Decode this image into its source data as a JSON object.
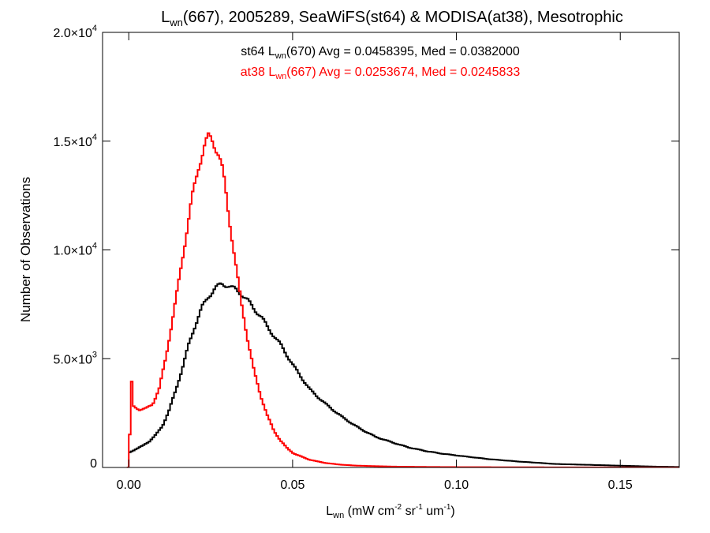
{
  "chart_data": {
    "type": "line",
    "style": "histogram-step",
    "title": {
      "main": "L",
      "sub": "wn",
      "rest": "(667), 2005289, SeaWiFS(st64) & MODISA(at38), Mesotrophic"
    },
    "xlabel": {
      "main": "L",
      "sub": "wn",
      "rest": " (mW cm",
      "sup1": "-2",
      "mid": " sr",
      "sup2": "-1",
      "end": " um",
      "sup3": "-1",
      "close": ")"
    },
    "ylabel": "Number of Observations",
    "xlim": [
      -0.008,
      0.168
    ],
    "ylim": [
      0,
      20000
    ],
    "x_ticks": [
      {
        "value": 0.0,
        "label": "0.00"
      },
      {
        "value": 0.05,
        "label": "0.05"
      },
      {
        "value": 0.1,
        "label": "0.10"
      },
      {
        "value": 0.15,
        "label": "0.15"
      }
    ],
    "y_ticks": [
      {
        "value": 0,
        "mant": "0",
        "exp": ""
      },
      {
        "value": 5000,
        "mant": "5.0×10",
        "exp": "3"
      },
      {
        "value": 10000,
        "mant": "1.0×10",
        "exp": "4"
      },
      {
        "value": 15000,
        "mant": "1.5×10",
        "exp": "4"
      },
      {
        "value": 20000,
        "mant": "2.0×10",
        "exp": "4"
      }
    ],
    "grid": false,
    "annotations": [
      {
        "prefix": "st64 L",
        "sub": "wn",
        "suffix": "(670) Avg = 0.0458395, Med = 0.0382000",
        "color": "#000000"
      },
      {
        "prefix": "at38 L",
        "sub": "wn",
        "suffix": "(667) Avg = 0.0253674, Med = 0.0245833",
        "color": "#ff0000"
      }
    ],
    "series": [
      {
        "color": "#000000",
        "x": [
          0.0,
          0.002,
          0.004,
          0.006,
          0.008,
          0.01,
          0.012,
          0.014,
          0.016,
          0.018,
          0.02,
          0.022,
          0.024,
          0.026,
          0.028,
          0.03,
          0.032,
          0.034,
          0.036,
          0.038,
          0.04,
          0.042,
          0.044,
          0.046,
          0.048,
          0.05,
          0.055,
          0.06,
          0.065,
          0.07,
          0.075,
          0.08,
          0.085,
          0.09,
          0.095,
          0.1,
          0.11,
          0.12,
          0.13,
          0.14,
          0.15,
          0.16,
          0.168
        ],
        "y": [
          700,
          850,
          1000,
          1200,
          1500,
          1900,
          2600,
          3500,
          4500,
          5600,
          6500,
          7300,
          7800,
          8200,
          8400,
          8350,
          8200,
          8000,
          7700,
          7300,
          7000,
          6500,
          6100,
          5700,
          5200,
          4700,
          3600,
          2900,
          2300,
          1800,
          1400,
          1150,
          920,
          760,
          640,
          550,
          380,
          260,
          160,
          120,
          80,
          40,
          20
        ]
      },
      {
        "color": "#ff0000",
        "x": [
          -0.0006,
          0.0,
          0.0006,
          0.0012,
          0.003,
          0.005,
          0.007,
          0.009,
          0.011,
          0.013,
          0.015,
          0.017,
          0.019,
          0.021,
          0.023,
          0.024,
          0.025,
          0.026,
          0.027,
          0.028,
          0.029,
          0.03,
          0.032,
          0.034,
          0.036,
          0.038,
          0.04,
          0.042,
          0.044,
          0.046,
          0.048,
          0.05,
          0.055,
          0.06,
          0.065,
          0.07,
          0.08,
          0.09,
          0.1,
          0.12,
          0.14,
          0.168
        ],
        "y": [
          0,
          1500,
          3900,
          2800,
          2650,
          2700,
          2900,
          3600,
          5000,
          6700,
          8500,
          10400,
          12300,
          13700,
          14800,
          15100,
          15000,
          14700,
          14400,
          13900,
          13000,
          11800,
          9700,
          7600,
          5900,
          4400,
          3300,
          2400,
          1700,
          1250,
          900,
          650,
          350,
          200,
          120,
          80,
          40,
          25,
          15,
          8,
          4,
          2
        ]
      }
    ]
  }
}
